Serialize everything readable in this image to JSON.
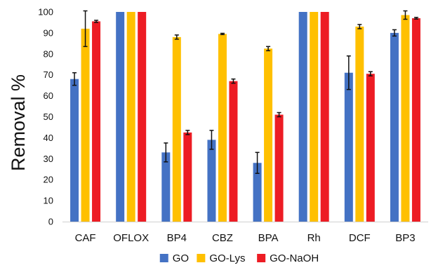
{
  "chart_data": {
    "type": "bar",
    "title": "",
    "xlabel": "",
    "ylabel": "Removal %",
    "ylim": [
      0,
      100
    ],
    "yticks": [
      0,
      10,
      20,
      30,
      40,
      50,
      60,
      70,
      80,
      90,
      100
    ],
    "grid": false,
    "legend_position": "bottom",
    "error_bars": true,
    "categories": [
      "CAF",
      "OFLOX",
      "BP4",
      "CBZ",
      "BPA",
      "Rh",
      "DCF",
      "BP3"
    ],
    "series": [
      {
        "name": "GO",
        "color": "#4472c4",
        "values": [
          68,
          100,
          33,
          39,
          28,
          100,
          71,
          90
        ],
        "errors": [
          3,
          0,
          4.5,
          4.5,
          5,
          0,
          8,
          1.5
        ]
      },
      {
        "name": "GO-Lys",
        "color": "#ffc000",
        "values": [
          92,
          100,
          88,
          89.5,
          82.5,
          100,
          93,
          98.5
        ],
        "errors": [
          8.5,
          0,
          1,
          0.3,
          1,
          0,
          1,
          2
        ]
      },
      {
        "name": "GO-NaOH",
        "color": "#ed1c24",
        "values": [
          95.5,
          100,
          42.5,
          67,
          51,
          100,
          70.5,
          97
        ],
        "errors": [
          0.5,
          0,
          1,
          1,
          1,
          0,
          1,
          0.4
        ]
      }
    ]
  }
}
